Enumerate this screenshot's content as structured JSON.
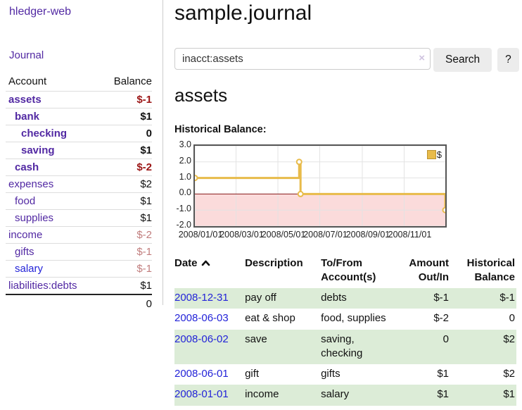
{
  "app": {
    "title": "hledger-web"
  },
  "colors": {
    "link_purple": "#5229a3",
    "link_blue": "#2323d8",
    "negative_strong": "#9b1515",
    "negative_soft": "#c17d7d",
    "table_negative": "#9b2b2b",
    "row_shade_green": "#dcecd7",
    "chart_line_gold": "#e8bb4a",
    "chart_negative_fill": "#fbdbdb",
    "chart_zero_line": "#8b1a1a"
  },
  "sidebar": {
    "journal_label": "Journal",
    "headers": {
      "account": "Account",
      "balance": "Balance"
    },
    "rows": [
      {
        "account": "assets",
        "balance": "$-1",
        "depth": 1,
        "bold": true,
        "negative": "strong",
        "link_color": "purple"
      },
      {
        "account": "bank",
        "balance": "$1",
        "depth": 2,
        "bold": true,
        "negative": null,
        "link_color": "purple"
      },
      {
        "account": "checking",
        "balance": "0",
        "depth": 3,
        "bold": true,
        "negative": null,
        "link_color": "purple"
      },
      {
        "account": "saving",
        "balance": "$1",
        "depth": 3,
        "bold": true,
        "negative": null,
        "link_color": "purple"
      },
      {
        "account": "cash",
        "balance": "$-2",
        "depth": 2,
        "bold": true,
        "negative": "strong",
        "link_color": "purple"
      },
      {
        "account": "expenses",
        "balance": "$2",
        "depth": 1,
        "bold": false,
        "negative": null,
        "link_color": "purple"
      },
      {
        "account": "food",
        "balance": "$1",
        "depth": 2,
        "bold": false,
        "negative": null,
        "link_color": "purple"
      },
      {
        "account": "supplies",
        "balance": "$1",
        "depth": 2,
        "bold": false,
        "negative": null,
        "link_color": "purple"
      },
      {
        "account": "income",
        "balance": "$-2",
        "depth": 1,
        "bold": false,
        "negative": "soft",
        "link_color": "purple"
      },
      {
        "account": "gifts",
        "balance": "$-1",
        "depth": 2,
        "bold": false,
        "negative": "soft",
        "link_color": "purple"
      },
      {
        "account": "salary",
        "balance": "$-1",
        "depth": 2,
        "bold": false,
        "negative": "soft",
        "link_color": "blue"
      },
      {
        "account": "liabilities:debts",
        "balance": "$1",
        "depth": 1,
        "bold": false,
        "negative": null,
        "link_color": "purple"
      }
    ],
    "total": "0"
  },
  "main": {
    "title": "sample.journal",
    "search": {
      "value": "inacct:assets",
      "clear_icon": "×",
      "button_label": "Search",
      "help_label": "?"
    },
    "account_heading": "assets",
    "chart_label": "Historical Balance:"
  },
  "chart_data": {
    "type": "line",
    "title": "Historical Balance:",
    "legend_label": "$",
    "legend_position": "top-right",
    "step": true,
    "ylim": [
      -2,
      3
    ],
    "y_ticks": [
      3.0,
      2.0,
      1.0,
      0.0,
      -1.0,
      -2.0
    ],
    "x_max_day": 365,
    "x_ticks": [
      {
        "day": 0,
        "label": "2008/01/01"
      },
      {
        "day": 60,
        "label": "2008/03/01"
      },
      {
        "day": 121,
        "label": "2008/05/01"
      },
      {
        "day": 182,
        "label": "2008/07/01"
      },
      {
        "day": 244,
        "label": "2008/09/01"
      },
      {
        "day": 305,
        "label": "2008/11/01"
      }
    ],
    "series": [
      {
        "name": "$",
        "points": [
          {
            "date": "2008-01-01",
            "day": 0,
            "value": 1
          },
          {
            "date": "2008-06-01",
            "day": 152,
            "value": 2
          },
          {
            "date": "2008-06-03",
            "day": 154,
            "value": 0
          },
          {
            "date": "2008-12-31",
            "day": 365,
            "value": -1
          }
        ]
      }
    ],
    "grid": true,
    "negative_region_shaded": true
  },
  "register": {
    "headers": {
      "date": "Date",
      "description": "Description",
      "accounts": "To/From Account(s)",
      "amount": "Amount Out/In",
      "balance": "Historical Balance"
    },
    "sort_icon": "chevron-up",
    "rows": [
      {
        "date": "2008-12-31",
        "description": "pay off",
        "accounts": "debts",
        "amount": "$-1",
        "amount_negative": true,
        "balance": "$-1",
        "balance_negative": true,
        "shaded": true
      },
      {
        "date": "2008-06-03",
        "description": "eat & shop",
        "accounts": "food, supplies",
        "amount": "$-2",
        "amount_negative": true,
        "balance": "0",
        "balance_negative": false,
        "shaded": false
      },
      {
        "date": "2008-06-02",
        "description": "save",
        "accounts": "saving, checking",
        "amount": "0",
        "amount_negative": false,
        "balance": "$2",
        "balance_negative": false,
        "shaded": true
      },
      {
        "date": "2008-06-01",
        "description": "gift",
        "accounts": "gifts",
        "amount": "$1",
        "amount_negative": false,
        "balance": "$2",
        "balance_negative": false,
        "shaded": false
      },
      {
        "date": "2008-01-01",
        "description": "income",
        "accounts": "salary",
        "amount": "$1",
        "amount_negative": false,
        "balance": "$1",
        "balance_negative": false,
        "shaded": true
      }
    ]
  }
}
